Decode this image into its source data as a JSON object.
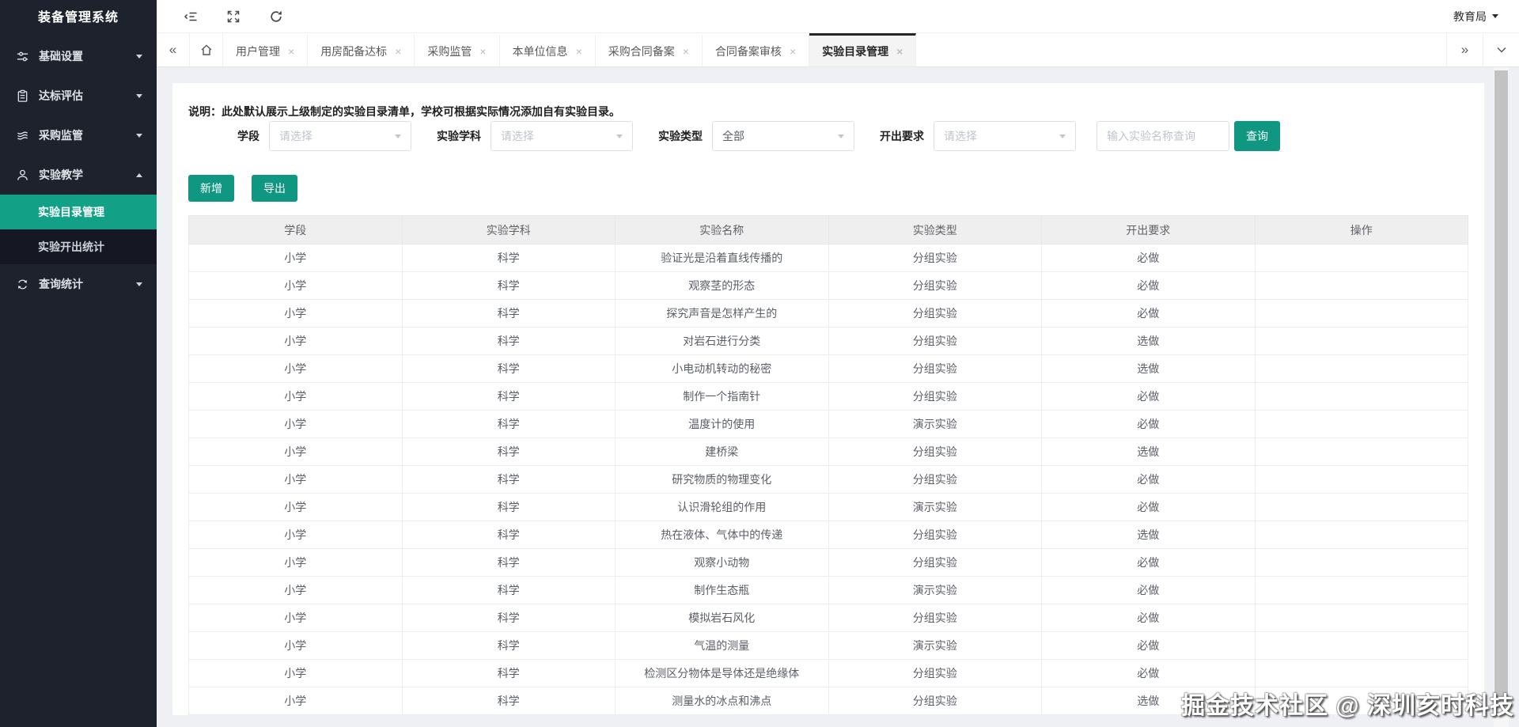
{
  "app": {
    "title": "装备管理系统"
  },
  "header": {
    "user": "教育局"
  },
  "colors": {
    "accent": "#0f9782",
    "accent_active": "#12a186",
    "sidebar_bg": "#1e222c",
    "submenu_bg": "#151822"
  },
  "sidebar": {
    "items": [
      {
        "id": "basic-settings",
        "label": "基础设置",
        "icon": "sliders-icon",
        "expanded": false
      },
      {
        "id": "standards-evaluation",
        "label": "达标评估",
        "icon": "clipboard-icon",
        "expanded": false
      },
      {
        "id": "procurement-supervision",
        "label": "采购监管",
        "icon": "layers-icon",
        "expanded": false
      },
      {
        "id": "experiment-teaching",
        "label": "实验教学",
        "icon": "user-icon",
        "expanded": true,
        "children": [
          {
            "id": "experiment-catalog-management",
            "label": "实验目录管理",
            "active": true
          },
          {
            "id": "experiment-open-statistics",
            "label": "实验开出统计",
            "active": false
          }
        ]
      },
      {
        "id": "query-statistics",
        "label": "查询统计",
        "icon": "sync-icon",
        "expanded": false
      }
    ]
  },
  "tabs": {
    "items": [
      {
        "id": "user-management",
        "label": "用户管理",
        "active": false
      },
      {
        "id": "housing-allocation-standard",
        "label": "用房配备达标",
        "active": false
      },
      {
        "id": "procurement-supervision",
        "label": "采购监管",
        "active": false
      },
      {
        "id": "unit-info",
        "label": "本单位信息",
        "active": false
      },
      {
        "id": "procurement-contract-filing",
        "label": "采购合同备案",
        "active": false
      },
      {
        "id": "contract-filing-review",
        "label": "合同备案审核",
        "active": false
      },
      {
        "id": "experiment-catalog-management",
        "label": "实验目录管理",
        "active": true
      }
    ]
  },
  "content": {
    "note": "说明：此处默认展示上级制定的实验目录清单，学校可根据实际情况添加自有实验目录。",
    "filters": [
      {
        "id": "stage",
        "label": "学段",
        "value": "请选择",
        "is_placeholder": true
      },
      {
        "id": "subject",
        "label": "实验学科",
        "value": "请选择",
        "is_placeholder": true
      },
      {
        "id": "experiment-type",
        "label": "实验类型",
        "value": "全部",
        "is_placeholder": false
      },
      {
        "id": "requirement",
        "label": "开出要求",
        "value": "请选择",
        "is_placeholder": true
      }
    ],
    "search_placeholder": "输入实验名称查询",
    "search_button": "查询",
    "actions": {
      "add": "新增",
      "export": "导出"
    },
    "table": {
      "columns": [
        "学段",
        "实验学科",
        "实验名称",
        "实验类型",
        "开出要求",
        "操作"
      ],
      "rows": [
        [
          "小学",
          "科学",
          "验证光是沿着直线传播的",
          "分组实验",
          "必做",
          ""
        ],
        [
          "小学",
          "科学",
          "观察茎的形态",
          "分组实验",
          "必做",
          ""
        ],
        [
          "小学",
          "科学",
          "探究声音是怎样产生的",
          "分组实验",
          "必做",
          ""
        ],
        [
          "小学",
          "科学",
          "对岩石进行分类",
          "分组实验",
          "选做",
          ""
        ],
        [
          "小学",
          "科学",
          "小电动机转动的秘密",
          "分组实验",
          "选做",
          ""
        ],
        [
          "小学",
          "科学",
          "制作一个指南针",
          "分组实验",
          "必做",
          ""
        ],
        [
          "小学",
          "科学",
          "温度计的使用",
          "演示实验",
          "必做",
          ""
        ],
        [
          "小学",
          "科学",
          "建桥梁",
          "分组实验",
          "选做",
          ""
        ],
        [
          "小学",
          "科学",
          "研究物质的物理变化",
          "分组实验",
          "必做",
          ""
        ],
        [
          "小学",
          "科学",
          "认识滑轮组的作用",
          "演示实验",
          "必做",
          ""
        ],
        [
          "小学",
          "科学",
          "热在液体、气体中的传递",
          "分组实验",
          "选做",
          ""
        ],
        [
          "小学",
          "科学",
          "观察小动物",
          "分组实验",
          "必做",
          ""
        ],
        [
          "小学",
          "科学",
          "制作生态瓶",
          "演示实验",
          "必做",
          ""
        ],
        [
          "小学",
          "科学",
          "模拟岩石风化",
          "分组实验",
          "必做",
          ""
        ],
        [
          "小学",
          "科学",
          "气温的测量",
          "演示实验",
          "必做",
          ""
        ],
        [
          "小学",
          "科学",
          "检测区分物体是导体还是绝缘体",
          "分组实验",
          "必做",
          ""
        ],
        [
          "小学",
          "科学",
          "测量水的冰点和沸点",
          "分组实验",
          "选做",
          ""
        ]
      ]
    }
  },
  "watermark": "掘金技术社区 @ 深圳亥时科技"
}
